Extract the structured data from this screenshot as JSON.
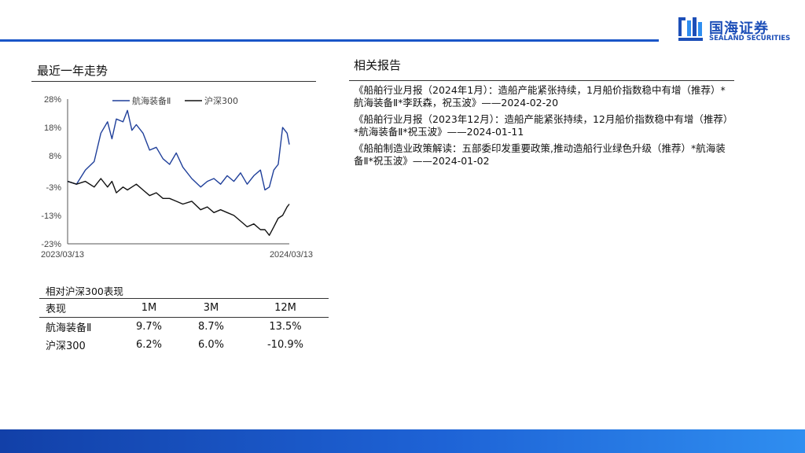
{
  "logo": {
    "name_cn": "国海证券",
    "name_en": "SEALAND SECURITIES",
    "color": "#1d4fb8"
  },
  "left_section": {
    "title": "最近一年走势"
  },
  "right_section": {
    "title": "相关报告",
    "reports": [
      "《船舶行业月报（2024年1月）：造船产能紧张持续，1月船价指数稳中有增（推荐）*航海装备Ⅱ*李跃森，祝玉波》——2024-02-20",
      "《船舶行业月报（2023年12月）：造船产能紧张持续，12月船价指数稳中有增（推荐）*航海装备Ⅱ*祝玉波》——2024-01-11",
      "《船舶制造业政策解读：五部委印发重要政策,推动造船行业绿色升级（推荐）*航海装备Ⅱ*祝玉波》——2024-01-02"
    ]
  },
  "performance": {
    "title": "相对沪深300表现",
    "header": [
      "表现",
      "1M",
      "3M",
      "12M"
    ],
    "rows": [
      [
        "航海装备Ⅱ",
        "9.7%",
        "8.7%",
        "13.5%"
      ],
      [
        "沪深300",
        "6.2%",
        "6.0%",
        "-10.9%"
      ]
    ]
  },
  "chart_data": {
    "type": "line",
    "title": "",
    "xlabel": "",
    "ylabel": "",
    "ylim": [
      -23,
      28
    ],
    "y_ticks": [
      28,
      18,
      8,
      -3,
      -13,
      -23
    ],
    "y_tick_labels": [
      "28%",
      "18%",
      "8%",
      "-3%",
      "-13%",
      "-23%"
    ],
    "x_tick_labels": [
      "2023/03/13",
      "2024/03/13"
    ],
    "legend_position": "top",
    "grid": false,
    "x": [
      0,
      0.04,
      0.08,
      0.12,
      0.15,
      0.18,
      0.2,
      0.22,
      0.25,
      0.27,
      0.29,
      0.31,
      0.34,
      0.37,
      0.4,
      0.43,
      0.46,
      0.49,
      0.52,
      0.56,
      0.6,
      0.63,
      0.66,
      0.69,
      0.72,
      0.75,
      0.78,
      0.81,
      0.84,
      0.87,
      0.89,
      0.91,
      0.93,
      0.95,
      0.97,
      0.99,
      1.0
    ],
    "series": [
      {
        "name": "航海装备Ⅱ",
        "color": "#1f3f9a",
        "values": [
          -1,
          -2,
          3,
          6,
          16,
          20,
          14,
          21,
          20,
          24,
          17,
          19,
          16,
          10,
          11,
          7,
          5,
          9,
          4,
          0,
          -3,
          -1,
          0,
          -2,
          1,
          -1,
          2,
          -2,
          1,
          3,
          -4,
          -3,
          3,
          5,
          18,
          16,
          12
        ]
      },
      {
        "name": "沪深300",
        "color": "#111111",
        "values": [
          -1,
          -2,
          -1,
          -3,
          0,
          -3,
          -1,
          -5,
          -3,
          -4,
          -3,
          -2,
          -4,
          -6,
          -5,
          -7,
          -7,
          -8,
          -9,
          -8,
          -11,
          -10,
          -12,
          -11,
          -12,
          -13,
          -15,
          -17,
          -16,
          -18,
          -18,
          -20,
          -17,
          -14,
          -13,
          -10,
          -9
        ]
      }
    ]
  }
}
